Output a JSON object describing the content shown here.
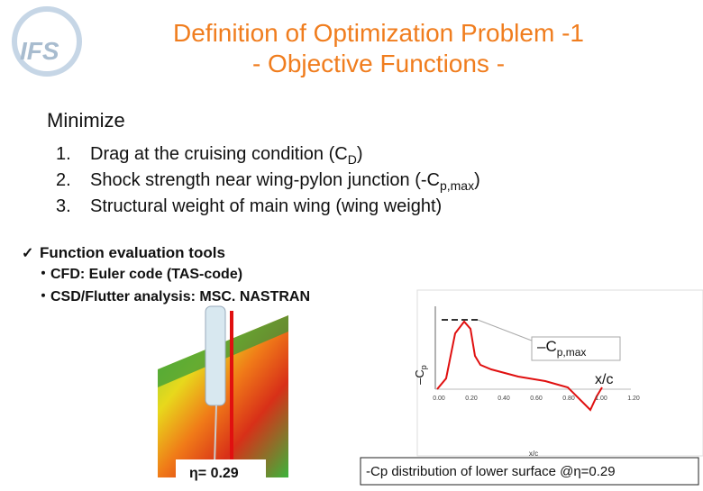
{
  "logo": {
    "text": "IFS"
  },
  "header": {
    "title_line1": "Definition of Optimization Problem -1",
    "title_line2": "- Objective Functions -"
  },
  "section": {
    "heading": "Minimize",
    "items": [
      {
        "number": "1.",
        "text": "Drag at the cruising condition  (C",
        "sub": "D",
        "after": ")"
      },
      {
        "number": "2.",
        "text": "Shock strength near wing-pylon junction (-C",
        "sub": "p,max",
        "after": ")"
      },
      {
        "number": "3.",
        "text": "Structural weight of main wing (wing weight)",
        "sub": "",
        "after": ""
      }
    ]
  },
  "tools": {
    "check": "✓",
    "heading": "Function evaluation tools",
    "bullets": [
      "・CFD: Euler code (TAS-code)",
      "・CSD/Flutter analysis: MSC. NASTRAN"
    ]
  },
  "figure": {
    "eta_label": "η= 0.29",
    "plot": {
      "y_label": "–C",
      "y_label_sub": "p",
      "cpmax_label": "–C",
      "cpmax_sub": "p,max",
      "xc_annotation": "x/c",
      "x_ticks": [
        "0.00",
        "0.20",
        "0.40",
        "0.60",
        "0.80",
        "1.00",
        "1.20"
      ],
      "x_label": "x/c"
    },
    "caption": "-Cp distribution of lower surface @η=0.29"
  }
}
